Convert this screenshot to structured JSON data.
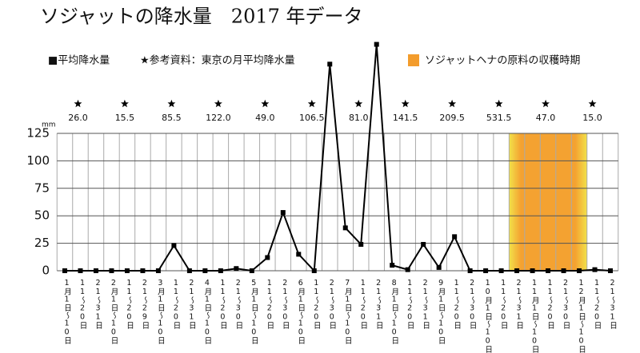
{
  "chart_data": {
    "type": "line",
    "title": "ソジャットの降水量　2017 年データ",
    "legend_line": "■平均降水量",
    "legend_reference": "★参考資料：東京の月平均降水量",
    "y_unit": "mm",
    "categories": [
      "1月1日〜10日",
      "11〜20日",
      "21〜31日",
      "2月1日〜10日",
      "11〜20日",
      "21〜29日",
      "3月1日〜10日",
      "11〜20日",
      "21〜31日",
      "4月1日〜10日",
      "11〜20日",
      "21〜30日",
      "5月1日〜10日",
      "11〜20日",
      "21〜30日",
      "6月1日〜10日",
      "11〜20日",
      "21〜30日",
      "7月1日〜10日",
      "11〜20日",
      "21〜31日",
      "8月1日〜10日",
      "11〜20日",
      "21〜31日",
      "9月1日〜10日",
      "11〜20日",
      "21〜30日",
      "10月1日〜10日",
      "11〜20日",
      "21〜31日",
      "11月1日〜10日",
      "11〜20日",
      "21〜30日",
      "12月1日〜10日",
      "11〜20日",
      "21〜31日"
    ],
    "values": [
      0,
      0,
      0,
      0,
      0,
      0,
      0,
      23,
      0,
      0,
      0,
      2,
      0,
      12,
      53,
      15,
      0,
      188,
      39,
      24,
      206,
      5,
      1,
      24,
      3,
      31,
      0,
      0,
      0,
      0,
      0,
      0,
      0,
      0,
      1,
      0
    ],
    "color": "#000000",
    "reference": {
      "values": [
        26.0,
        15.5,
        85.5,
        122.0,
        49.0,
        106.5,
        81.0,
        141.5,
        209.5,
        531.5,
        47.0,
        15.0
      ],
      "value_labels": [
        "26.0",
        "15.5",
        "85.5",
        "122.0",
        "49.0",
        "106.5",
        "81.0",
        "141.5",
        "209.5",
        "531.5",
        "47.0",
        "15.0"
      ]
    },
    "highlight": {
      "label": "ソジャットヘナの原料の収穫時期",
      "range": [
        29,
        33
      ],
      "color": "#f39c2c"
    },
    "ylim": [
      0,
      125
    ],
    "yticks": [
      0,
      25,
      50,
      75,
      100,
      125
    ],
    "grid": true
  }
}
